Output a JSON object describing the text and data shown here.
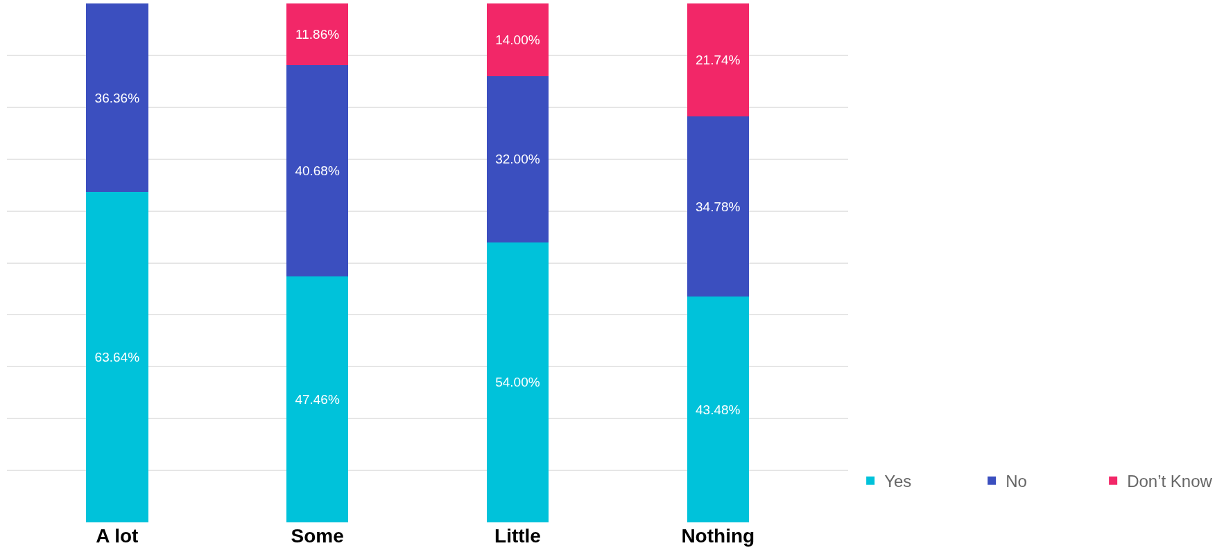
{
  "chart_data": {
    "type": "bar",
    "stacked": true,
    "categories": [
      "A lot",
      "Some",
      "Little",
      "Nothing"
    ],
    "series": [
      {
        "name": "Yes",
        "color": "#00c2da",
        "values": [
          63.64,
          47.46,
          54.0,
          43.48
        ],
        "value_labels": [
          "63.64%",
          "47.46%",
          "54.00%",
          "43.48%"
        ]
      },
      {
        "name": "No",
        "color": "#3b4fbf",
        "values": [
          36.36,
          40.68,
          32.0,
          34.78
        ],
        "value_labels": [
          "36.36%",
          "40.68%",
          "32.00%",
          "34.78%"
        ]
      },
      {
        "name": "Don’t Know",
        "color": "#f22768",
        "values": [
          null,
          11.86,
          14.0,
          21.74
        ],
        "value_labels": [
          null,
          "11.86%",
          "14.00%",
          "21.74%"
        ]
      }
    ],
    "ylim": [
      0,
      100
    ],
    "yticks": [
      {
        "value": 10,
        "label": null
      },
      {
        "value": 20,
        "label": null
      },
      {
        "value": 30,
        "label": null
      },
      {
        "value": 40,
        "label": null
      },
      {
        "value": 50,
        "label": null
      },
      {
        "value": 60,
        "label": null
      },
      {
        "value": 70,
        "label": null
      },
      {
        "value": 80,
        "label": null
      },
      {
        "value": 90,
        "label": null
      }
    ],
    "grid": "y",
    "legend": "bottom right",
    "tick_labels": "x"
  }
}
